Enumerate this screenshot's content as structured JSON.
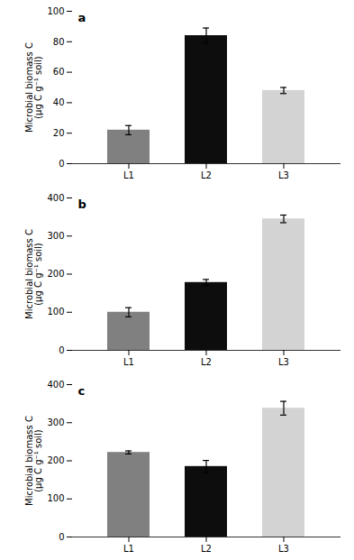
{
  "chart_data": [
    {
      "type": "bar",
      "title": "a",
      "ylabel": "Microbial biomass C\n(μg C g⁻¹ soil)",
      "categories": [
        "L1",
        "L2",
        "L3"
      ],
      "values": [
        22,
        84,
        48
      ],
      "errors": [
        3,
        5,
        2
      ],
      "colors": [
        "#808080",
        "#0d0d0d",
        "#d3d3d3"
      ],
      "ylim": [
        0,
        100
      ],
      "yticks": [
        0,
        20,
        40,
        60,
        80,
        100
      ]
    },
    {
      "type": "bar",
      "title": "b",
      "ylabel": "Microbial biomass C\n(μg C g⁻¹ soil)",
      "categories": [
        "L1",
        "L2",
        "L3"
      ],
      "values": [
        100,
        178,
        345
      ],
      "errors": [
        12,
        8,
        10
      ],
      "colors": [
        "#808080",
        "#0d0d0d",
        "#d3d3d3"
      ],
      "ylim": [
        0,
        400
      ],
      "yticks": [
        0,
        100,
        200,
        300,
        400
      ]
    },
    {
      "type": "bar",
      "title": "c",
      "ylabel": "Microbial biomass C\n(μg C g⁻¹ soil)",
      "categories": [
        "L1",
        "L2",
        "L3"
      ],
      "values": [
        222,
        185,
        338
      ],
      "errors": [
        4,
        16,
        18
      ],
      "colors": [
        "#808080",
        "#0d0d0d",
        "#d3d3d3"
      ],
      "ylim": [
        0,
        400
      ],
      "yticks": [
        0,
        100,
        200,
        300,
        400
      ]
    }
  ]
}
